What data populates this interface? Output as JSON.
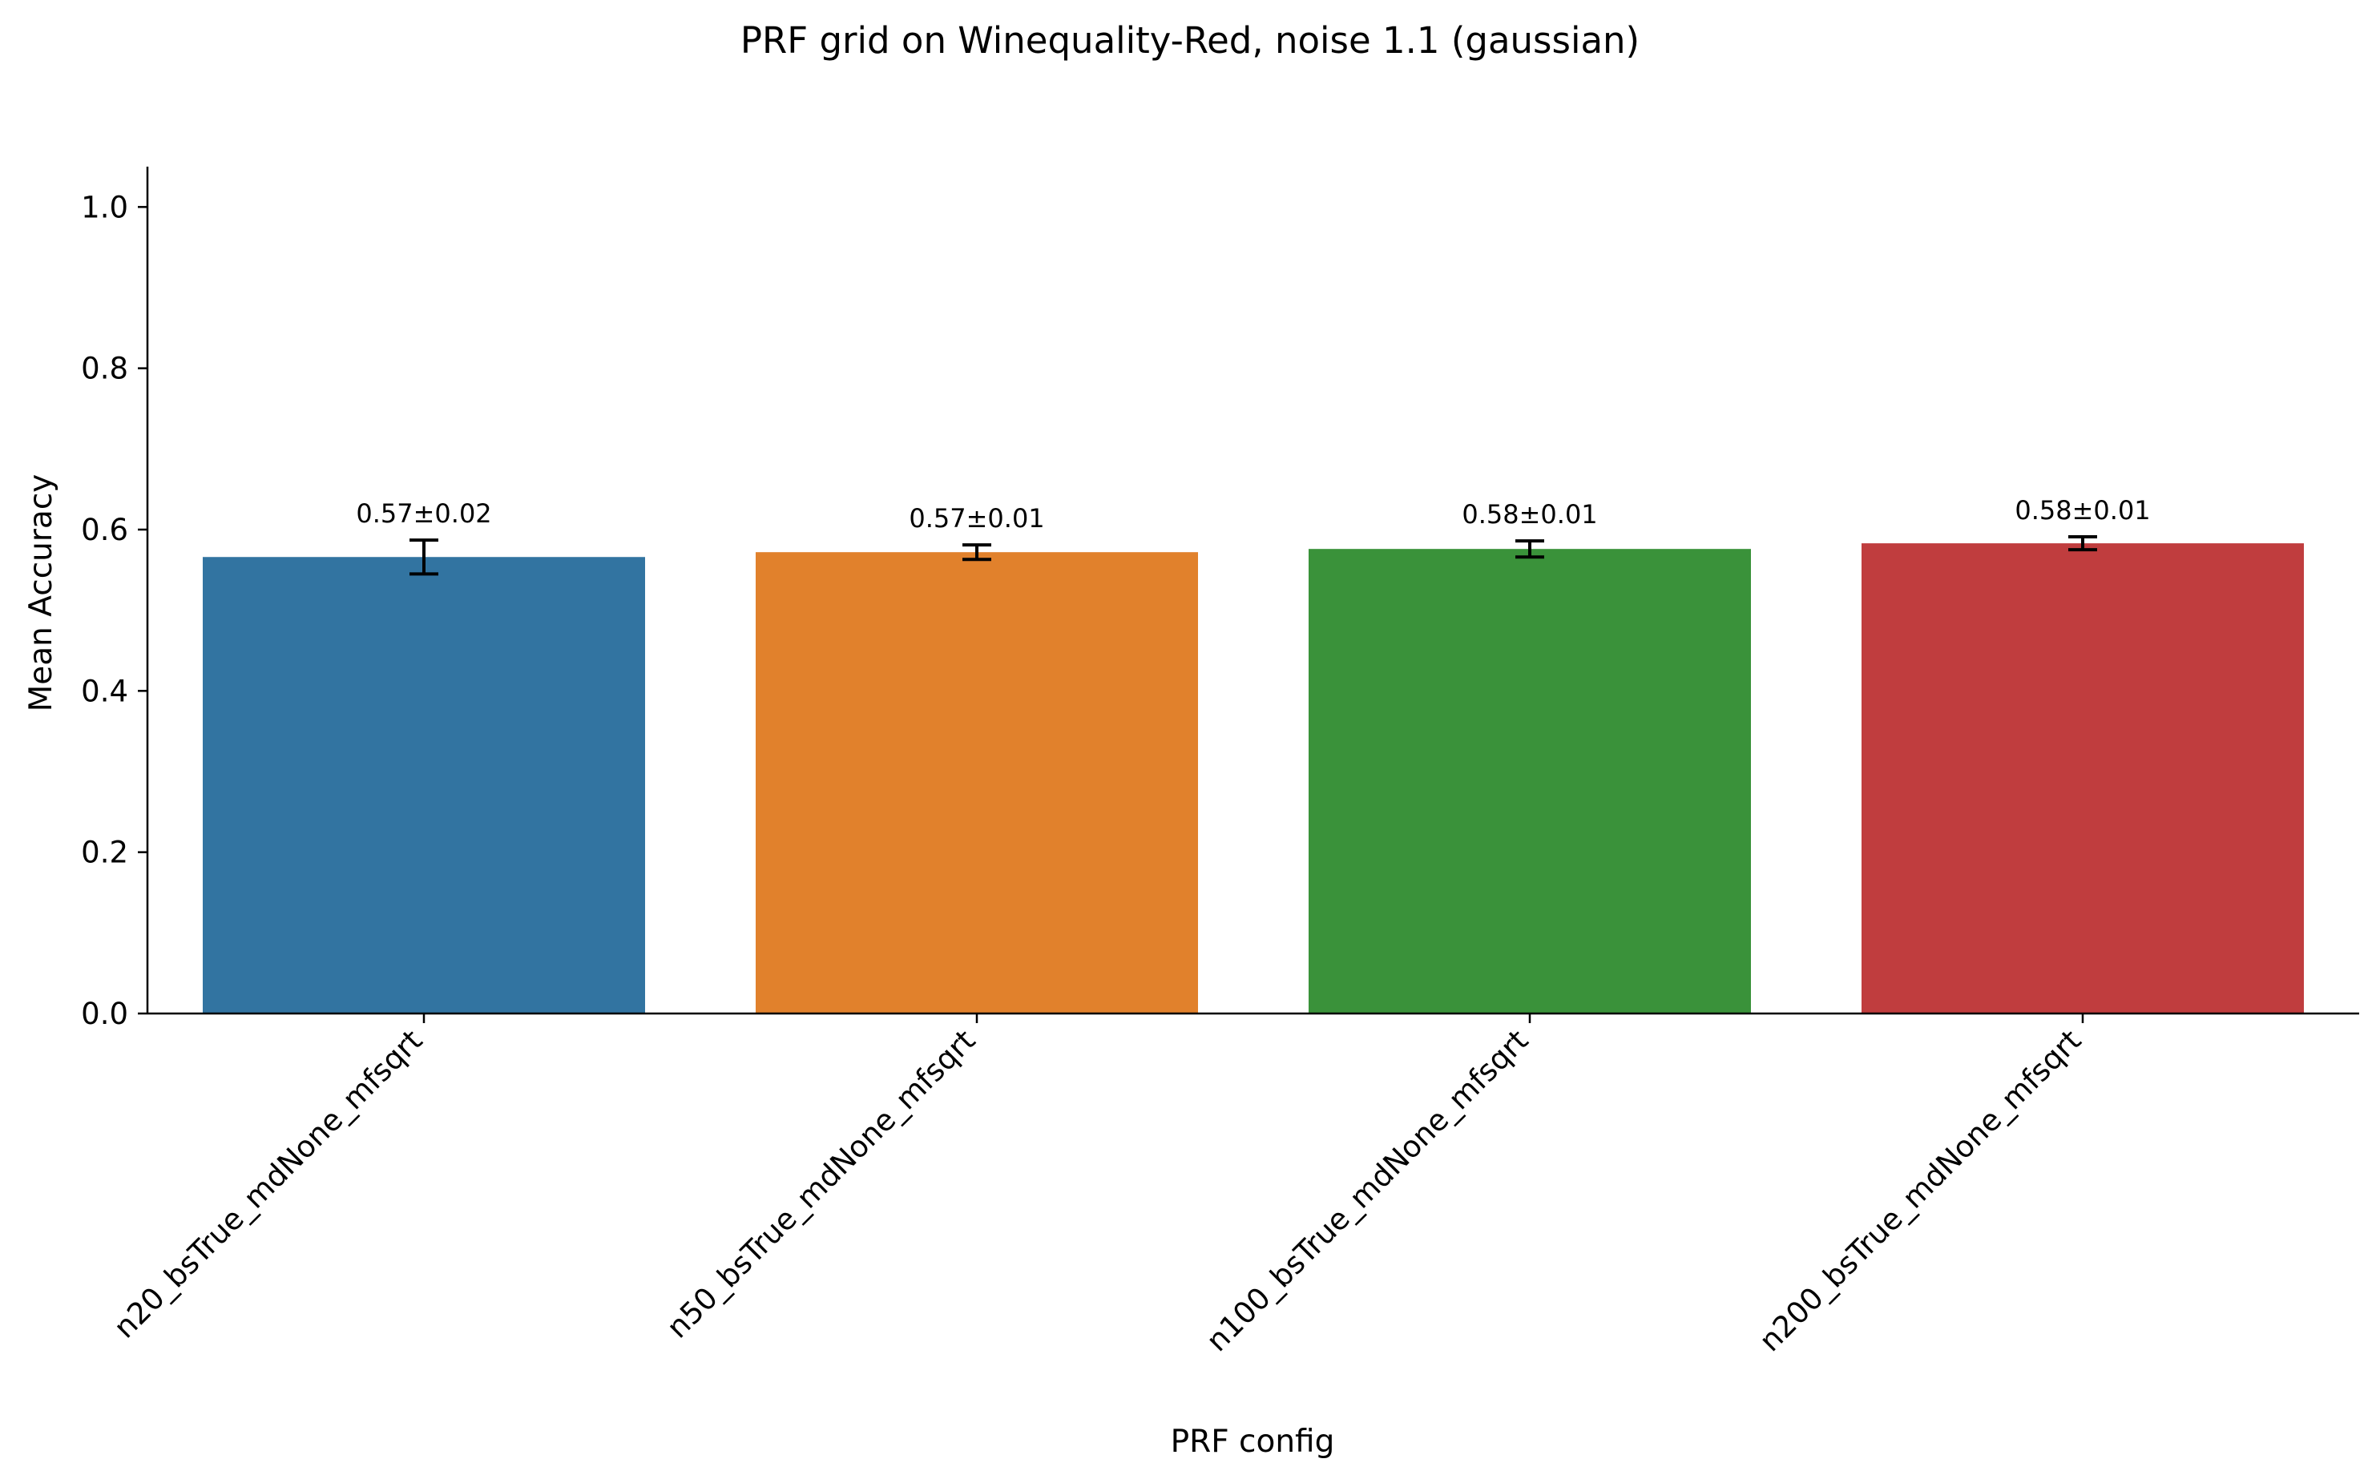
{
  "chart_data": {
    "type": "bar",
    "title": "PRF grid on Winequality-Red, noise 1.1 (gaussian)",
    "xlabel": "PRF config",
    "ylabel": "Mean Accuracy",
    "ylim": [
      0,
      1.05
    ],
    "yticks": [
      0.0,
      0.2,
      0.4,
      0.6,
      0.8,
      1.0
    ],
    "ytick_labels": [
      "0.0",
      "0.2",
      "0.4",
      "0.6",
      "0.8",
      "1.0"
    ],
    "categories": [
      "n20_bsTrue_mdNone_mfsqrt",
      "n50_bsTrue_mdNone_mfsqrt",
      "n100_bsTrue_mdNone_mfsqrt",
      "n200_bsTrue_mdNone_mfsqrt"
    ],
    "values": [
      0.566,
      0.572,
      0.576,
      0.583
    ],
    "errors": [
      0.021,
      0.009,
      0.01,
      0.008
    ],
    "value_labels": [
      "0.57±0.02",
      "0.57±0.01",
      "0.58±0.01",
      "0.58±0.01"
    ],
    "colors": [
      "#3274a1",
      "#e1812c",
      "#3a923a",
      "#c03d3e"
    ],
    "grid": false,
    "legend": "none"
  }
}
